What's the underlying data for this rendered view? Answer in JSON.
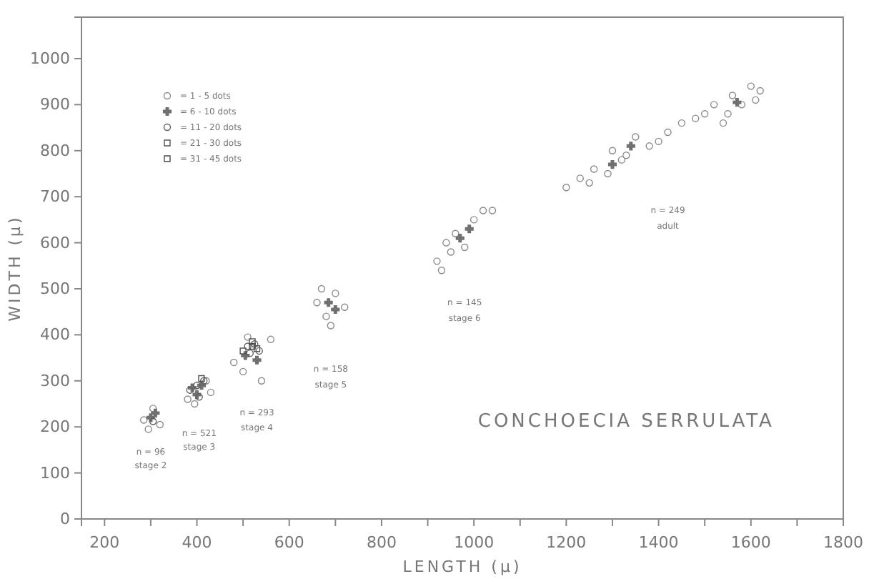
{
  "chart_data": {
    "type": "scatter",
    "title": "CONCHOECIA SERRULATA",
    "xlabel": "LENGTH (μ)",
    "ylabel": "WIDTH (μ)",
    "xlim": [
      150,
      1800
    ],
    "ylim": [
      0,
      1090
    ],
    "xticks": [
      200,
      {
        "value": 300,
        "label": null
      },
      400,
      {
        "value": 500,
        "label": null
      },
      600,
      {
        "value": 700,
        "label": null
      },
      800,
      {
        "value": 900,
        "label": null
      },
      1000,
      {
        "value": 1100,
        "label": null
      },
      1200,
      {
        "value": 1300,
        "label": null
      },
      1400,
      {
        "value": 1500,
        "label": null
      },
      1600,
      {
        "value": 1700,
        "label": null
      },
      1800
    ],
    "yticks": [
      0,
      100,
      200,
      300,
      400,
      500,
      600,
      700,
      800,
      900,
      1000
    ],
    "grid": false,
    "legend": "top left",
    "annotations": [
      "n = 96",
      "stage 2",
      "n = 521",
      "stage 3",
      "n = 293",
      "stage 4",
      "n = 158",
      "stage 5",
      "n = 145",
      "stage 6",
      "n = 249",
      "adult"
    ],
    "series": [
      {
        "name": "= 1 - 5 dots",
        "color": "#8a8a8a",
        "marker": "circle",
        "x": [
          295,
          320,
          305,
          285,
          380,
          420,
          395,
          430,
          480,
          500,
          540,
          560,
          510,
          660,
          680,
          700,
          720,
          690,
          670,
          920,
          940,
          960,
          980,
          1000,
          1020,
          1040,
          950,
          930,
          1200,
          1230,
          1260,
          1290,
          1300,
          1330,
          1350,
          1380,
          1420,
          1450,
          1480,
          1500,
          1520,
          1540,
          1560,
          1580,
          1600,
          1620,
          1250,
          1320,
          1400,
          1550,
          1610
        ],
        "values": [
          195,
          205,
          240,
          215,
          260,
          300,
          250,
          275,
          340,
          320,
          300,
          390,
          395,
          470,
          440,
          490,
          460,
          420,
          500,
          560,
          600,
          620,
          590,
          650,
          670,
          670,
          580,
          540,
          720,
          740,
          760,
          750,
          800,
          790,
          830,
          810,
          840,
          860,
          870,
          880,
          900,
          860,
          920,
          900,
          940,
          930,
          730,
          780,
          820,
          880,
          910
        ]
      },
      {
        "name": "= 6 - 10 dots",
        "color": "#707070",
        "marker": "cross",
        "x": [
          300,
          310,
          390,
          410,
          400,
          505,
          530,
          685,
          700,
          970,
          990,
          1340,
          1570,
          1300
        ],
        "values": [
          220,
          230,
          285,
          290,
          270,
          355,
          345,
          470,
          455,
          610,
          630,
          810,
          905,
          770
        ]
      },
      {
        "name": "= 11 - 20 dots",
        "color": "#606060",
        "marker": "circle",
        "x": [
          305,
          400,
          415,
          385,
          405,
          510,
          525,
          535,
          515
        ],
        "values": [
          212,
          290,
          300,
          280,
          265,
          375,
          380,
          365,
          360
        ]
      },
      {
        "name": "= 21 - 30 dots",
        "color": "#555555",
        "marker": "square",
        "x": [
          410,
          520,
          530,
          500
        ],
        "values": [
          305,
          385,
          370,
          365
        ]
      },
      {
        "name": "= 31 - 45 dots",
        "color": "#4a4a4a",
        "marker": "square",
        "x": [
          520
        ],
        "values": [
          375
        ]
      }
    ]
  }
}
